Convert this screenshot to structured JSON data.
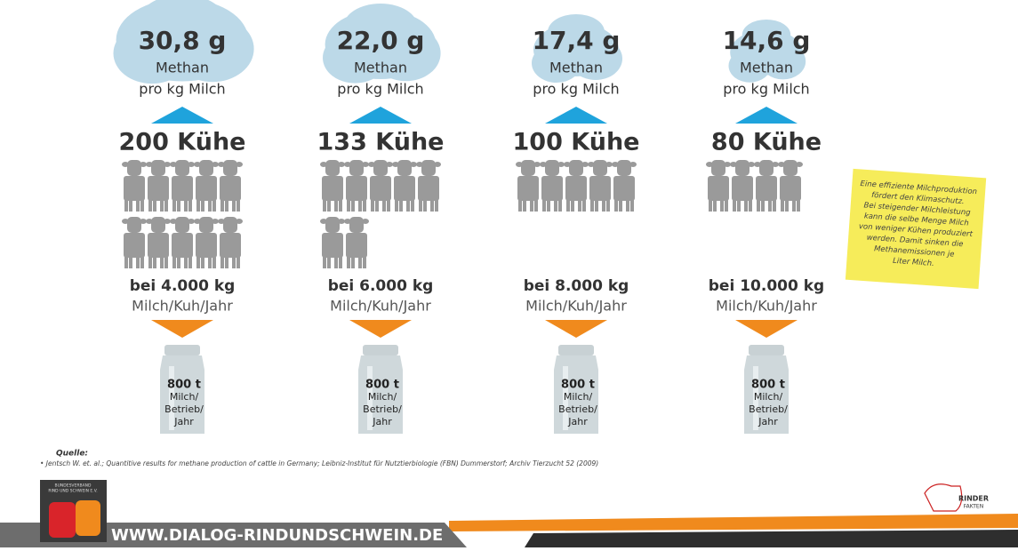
{
  "columns": [
    {
      "amount": "30,8 g",
      "gas": "Methan",
      "unit": "pro kg Milch",
      "cows": "200 Kühe",
      "yield": "bei 4.000 kg",
      "yield_unit": "Milch/Kuh/Jahr",
      "can": [
        "800 t",
        "Milch/",
        "Betrieb/",
        "Jahr"
      ]
    },
    {
      "amount": "22,0 g",
      "gas": "Methan",
      "unit": "pro kg Milch",
      "cows": "133 Kühe",
      "yield": "bei 6.000 kg",
      "yield_unit": "Milch/Kuh/Jahr",
      "can": [
        "800 t",
        "Milch/",
        "Betrieb/",
        "Jahr"
      ]
    },
    {
      "amount": "17,4 g",
      "gas": "Methan",
      "unit": "pro kg Milch",
      "cows": "100 Kühe",
      "yield": "bei 8.000 kg",
      "yield_unit": "Milch/Kuh/Jahr",
      "can": [
        "800 t",
        "Milch/",
        "Betrieb/",
        "Jahr"
      ]
    },
    {
      "amount": "14,6 g",
      "gas": "Methan",
      "unit": "pro kg Milch",
      "cows": "80 Kühe",
      "yield": "bei 10.000 kg",
      "yield_unit": "Milch/Kuh/Jahr",
      "can": [
        "800 t",
        "Milch/",
        "Betrieb/",
        "Jahr"
      ]
    }
  ],
  "note": [
    "Eine effiziente Milchproduktion",
    "fördert den Klimaschutz.",
    "Bei steigender Milchleistung",
    "kann die selbe Menge Milch",
    "von weniger Kühen produziert",
    "werden. Damit sinken die",
    "Methanemissionen je",
    "Liter Milch."
  ],
  "source": {
    "title": "Quelle:",
    "text": "• Jentsch W. et. al.; Quantitive results for methane production of cattle in Germany; Leibniz-Institut für Nutztierbiologie (FBN) Dummerstorf; Archiv Tierzucht 52 (2009)"
  },
  "footer": {
    "url": "WWW.DIALOG-RINDUNDSCHWEIN.DE",
    "org": [
      "BUNDESVERBAND",
      "RIND UND SCHWEIN E.V."
    ],
    "brand": [
      "RINDER",
      "FAKTEN"
    ]
  }
}
